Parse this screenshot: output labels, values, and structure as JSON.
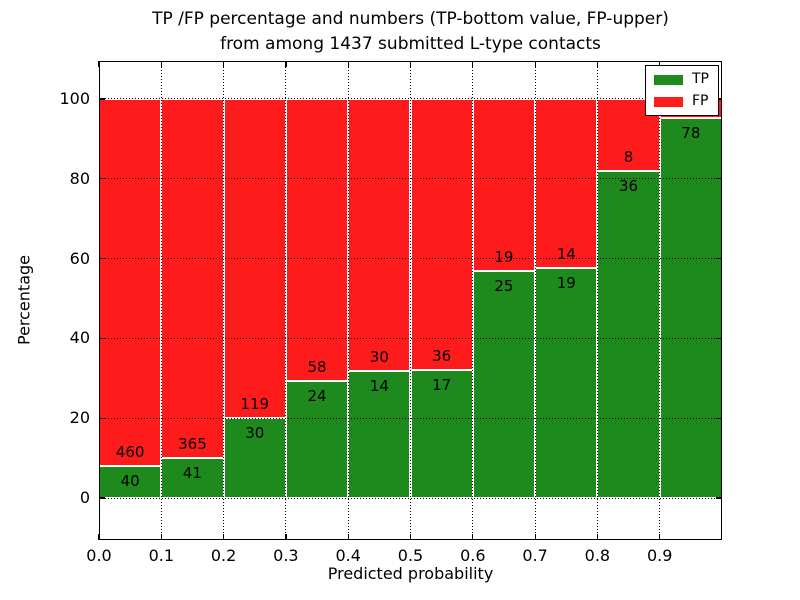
{
  "chart_data": {
    "type": "bar",
    "stacked": true,
    "normalized_to_percent": true,
    "title_line1": "TP /FP percentage and numbers (TP-bottom value, FP-upper)",
    "title_line2": "from among 1437 submitted L-type contacts",
    "xlabel": "Predicted probability",
    "ylabel": "Percentage",
    "x_tick_labels": [
      "0.0",
      "0.1",
      "0.2",
      "0.3",
      "0.4",
      "0.5",
      "0.6",
      "0.7",
      "0.8",
      "0.9"
    ],
    "y_tick_values": [
      0,
      20,
      40,
      60,
      80,
      100
    ],
    "xlim": [
      0.0,
      1.0
    ],
    "ylim": [
      -10.5,
      109.5
    ],
    "bin_width": 0.1,
    "grid": {
      "style": "dotted",
      "on_top_of_bars": true
    },
    "series": [
      {
        "name": "TP",
        "color": "#1e8a1e",
        "values": [
          40,
          41,
          30,
          24,
          14,
          17,
          25,
          19,
          36,
          78
        ]
      },
      {
        "name": "FP",
        "color": "#fd1b1b",
        "values": [
          460,
          365,
          119,
          58,
          30,
          36,
          19,
          14,
          8,
          4
        ]
      }
    ],
    "bar_value_labels": {
      "tp": [
        "40",
        "41",
        "30",
        "24",
        "14",
        "17",
        "25",
        "19",
        "36",
        "78"
      ],
      "fp": [
        "460",
        "365",
        "119",
        "58",
        "30",
        "36",
        "19",
        "14",
        "8",
        ""
      ]
    },
    "legend": {
      "position": "upper right",
      "entries": [
        {
          "label": "TP",
          "color": "#1e8a1e"
        },
        {
          "label": "FP",
          "color": "#fd1b1b"
        }
      ]
    },
    "colors": {
      "bar_edge": "#ffffff",
      "grid": "#000000",
      "frame": "#000000",
      "text": "#000000"
    }
  }
}
